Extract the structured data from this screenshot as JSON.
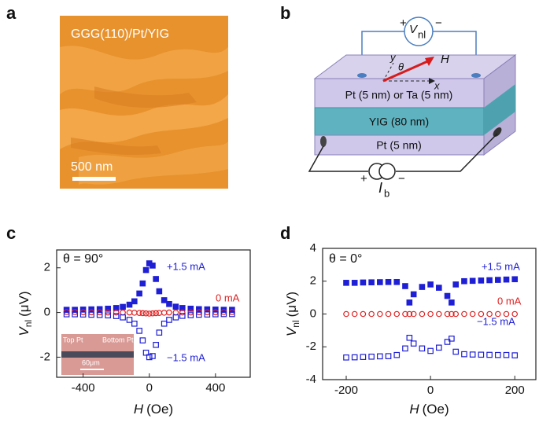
{
  "panel_labels": [
    "a",
    "b",
    "c",
    "d"
  ],
  "afm": {
    "label": "GGG(110)/Pt/YIG",
    "scale_bar": "500 nm"
  },
  "diagram": {
    "voltmeter": {
      "plus": "+",
      "symbol": "V",
      "sub": "nl",
      "minus": "−"
    },
    "axes": {
      "y": "y",
      "theta": "θ",
      "H": "H",
      "x": "x"
    },
    "layers": [
      "Pt (5 nm) or Ta (5 nm)",
      "YIG (80 nm)",
      "Pt (5 nm)"
    ],
    "current": {
      "plus": "+",
      "symbol": "I",
      "sub": "b",
      "minus": "−"
    }
  },
  "chart_data": [
    {
      "type": "scatter",
      "annotation": "θ = 90°",
      "inset": {
        "top": "Top Pt",
        "bottom": "Bottom Pt",
        "scale": "60μm"
      },
      "xlabel": {
        "symbol": "H",
        "unit": "(Oe)"
      },
      "ylabel": {
        "symbol": "V",
        "sub": "nl",
        "unit": "(μV)"
      },
      "xlim": [
        -560,
        610
      ],
      "ylim": [
        -2.9,
        2.8
      ],
      "xticks": [
        -400,
        0,
        400
      ],
      "yticks": [
        -2,
        0,
        2
      ],
      "series": [
        {
          "name": "+1.5 mA",
          "color": "#1f1fd6",
          "marker": "filled-square",
          "x": [
            -500,
            -450,
            -400,
            -350,
            -300,
            -250,
            -200,
            -160,
            -120,
            -90,
            -60,
            -40,
            -20,
            0,
            20,
            40,
            60,
            90,
            120,
            160,
            200,
            250,
            300,
            350,
            400,
            450,
            500
          ],
          "values": [
            0.12,
            0.12,
            0.13,
            0.14,
            0.15,
            0.17,
            0.2,
            0.25,
            0.35,
            0.5,
            0.85,
            1.3,
            1.9,
            2.2,
            2.1,
            1.5,
            0.95,
            0.55,
            0.38,
            0.26,
            0.2,
            0.17,
            0.15,
            0.14,
            0.13,
            0.12,
            0.12
          ]
        },
        {
          "name": "0 mA",
          "color": "#e02020",
          "marker": "open-circle",
          "x": [
            -500,
            -450,
            -400,
            -350,
            -300,
            -250,
            -200,
            -160,
            -120,
            -90,
            -60,
            -40,
            -20,
            0,
            20,
            40,
            60,
            90,
            120,
            160,
            200,
            250,
            300,
            350,
            400,
            450,
            500
          ],
          "values": [
            0.02,
            0.02,
            0.01,
            0.01,
            0.01,
            0,
            0,
            0,
            0,
            -0.01,
            -0.02,
            -0.03,
            -0.04,
            -0.05,
            -0.04,
            -0.03,
            -0.02,
            -0.01,
            0,
            0,
            0,
            0,
            0.01,
            0.01,
            0.01,
            0.02,
            0.02
          ]
        },
        {
          "name": "−1.5 mA",
          "color": "#1f1fd6",
          "marker": "open-square",
          "x": [
            -500,
            -450,
            -400,
            -350,
            -300,
            -250,
            -200,
            -160,
            -120,
            -90,
            -60,
            -40,
            -20,
            0,
            20,
            40,
            60,
            90,
            120,
            160,
            200,
            250,
            300,
            350,
            400,
            450,
            500
          ],
          "values": [
            -0.08,
            -0.08,
            -0.09,
            -0.1,
            -0.11,
            -0.13,
            -0.16,
            -0.22,
            -0.33,
            -0.5,
            -0.82,
            -1.25,
            -1.8,
            -2.0,
            -1.95,
            -1.45,
            -0.9,
            -0.5,
            -0.33,
            -0.22,
            -0.15,
            -0.12,
            -0.1,
            -0.09,
            -0.08,
            -0.07,
            -0.07
          ]
        }
      ]
    },
    {
      "type": "scatter",
      "annotation": "θ = 0°",
      "xlabel": {
        "symbol": "H",
        "unit": "(Oe)"
      },
      "ylabel": {
        "symbol": "V",
        "sub": "nl",
        "unit": "(μV)"
      },
      "xlim": [
        -256,
        250
      ],
      "ylim": [
        -4,
        4
      ],
      "xticks": [
        -200,
        0,
        200
      ],
      "yticks": [
        -4,
        -2,
        0,
        2,
        4
      ],
      "series": [
        {
          "name": "+1.5 mA",
          "color": "#1f1fd6",
          "marker": "filled-square",
          "x": [
            -200,
            -180,
            -160,
            -140,
            -120,
            -100,
            -80,
            -60,
            -50,
            -40,
            -20,
            0,
            20,
            40,
            50,
            60,
            80,
            100,
            120,
            140,
            160,
            180,
            200
          ],
          "values": [
            1.9,
            1.9,
            1.92,
            1.93,
            1.94,
            1.95,
            1.95,
            1.7,
            0.7,
            1.2,
            1.65,
            1.8,
            1.6,
            1.1,
            0.7,
            1.8,
            2.0,
            2.02,
            2.04,
            2.06,
            2.08,
            2.1,
            2.12
          ]
        },
        {
          "name": "0 mA",
          "color": "#e02020",
          "marker": "open-circle",
          "x": [
            -200,
            -180,
            -160,
            -140,
            -120,
            -100,
            -80,
            -60,
            -50,
            -40,
            -20,
            0,
            20,
            40,
            50,
            60,
            80,
            100,
            120,
            140,
            160,
            180,
            200
          ],
          "values": [
            0,
            0,
            0,
            0,
            0,
            0,
            0,
            0,
            0,
            0,
            0,
            0,
            0,
            0,
            0,
            0,
            0,
            0,
            0,
            0,
            0,
            0,
            0
          ]
        },
        {
          "name": "−1.5 mA",
          "color": "#1f1fd6",
          "marker": "open-square",
          "x": [
            -200,
            -180,
            -160,
            -140,
            -120,
            -100,
            -80,
            -60,
            -50,
            -40,
            -20,
            0,
            20,
            40,
            50,
            60,
            80,
            100,
            120,
            140,
            160,
            180,
            200
          ],
          "values": [
            -2.65,
            -2.64,
            -2.62,
            -2.6,
            -2.58,
            -2.57,
            -2.5,
            -2.1,
            -1.45,
            -1.8,
            -2.1,
            -2.25,
            -2.05,
            -1.7,
            -1.5,
            -2.3,
            -2.45,
            -2.47,
            -2.48,
            -2.49,
            -2.5,
            -2.5,
            -2.52
          ]
        }
      ]
    }
  ]
}
